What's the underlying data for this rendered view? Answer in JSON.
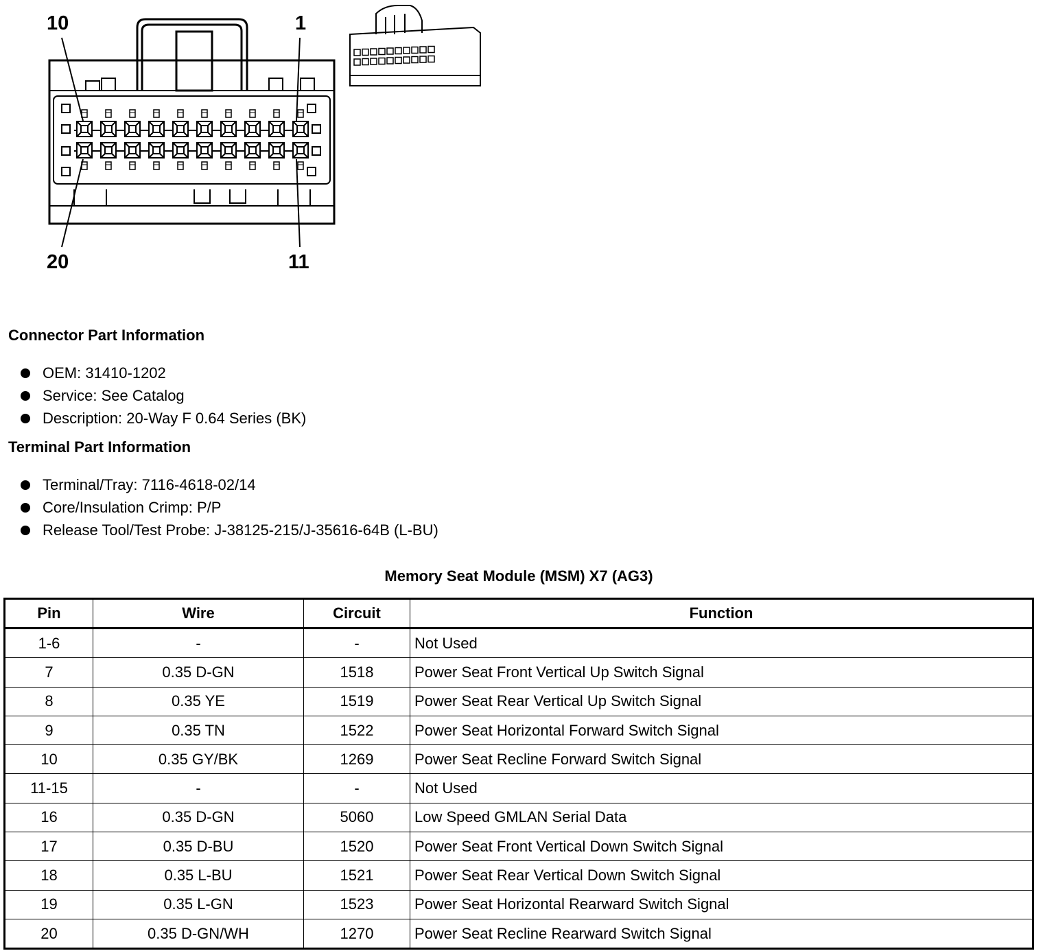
{
  "diagram": {
    "pin_labels": {
      "top_left": "10",
      "top_right": "1",
      "bottom_left": "20",
      "bottom_right": "11"
    }
  },
  "connector_part": {
    "heading": "Connector Part Information",
    "items": [
      "OEM: 31410-1202",
      "Service: See Catalog",
      "Description: 20-Way F 0.64 Series (BK)"
    ]
  },
  "terminal_part": {
    "heading": "Terminal Part Information",
    "items": [
      "Terminal/Tray: 7116-4618-02/14",
      "Core/Insulation Crimp: P/P",
      "Release Tool/Test Probe: J-38125-215/J-35616-64B (L-BU)"
    ]
  },
  "table": {
    "title": "Memory Seat Module (MSM) X7 (AG3)",
    "headers": [
      "Pin",
      "Wire",
      "Circuit",
      "Function"
    ],
    "rows": [
      [
        "1-6",
        "-",
        "-",
        "Not Used"
      ],
      [
        "7",
        "0.35 D-GN",
        "1518",
        "Power Seat Front Vertical Up Switch Signal"
      ],
      [
        "8",
        "0.35 YE",
        "1519",
        "Power Seat Rear Vertical Up Switch Signal"
      ],
      [
        "9",
        "0.35 TN",
        "1522",
        "Power Seat Horizontal Forward Switch Signal"
      ],
      [
        "10",
        "0.35 GY/BK",
        "1269",
        "Power Seat Recline Forward Switch Signal"
      ],
      [
        "11-15",
        "-",
        "-",
        "Not Used"
      ],
      [
        "16",
        "0.35 D-GN",
        "5060",
        "Low Speed GMLAN Serial Data"
      ],
      [
        "17",
        "0.35 D-BU",
        "1520",
        "Power Seat Front Vertical Down Switch Signal"
      ],
      [
        "18",
        "0.35 L-BU",
        "1521",
        "Power Seat Rear Vertical Down Switch Signal"
      ],
      [
        "19",
        "0.35 L-GN",
        "1523",
        "Power Seat Horizontal Rearward Switch Signal"
      ],
      [
        "20",
        "0.35 D-GN/WH",
        "1270",
        "Power Seat Recline Rearward Switch Signal"
      ]
    ]
  }
}
